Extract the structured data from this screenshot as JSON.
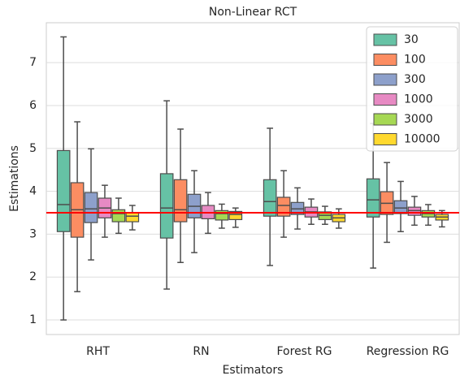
{
  "chart_data": {
    "type": "boxplot",
    "title": "Non-Linear RCT",
    "x_label": "Estimators",
    "y_label": "Estimations",
    "categories": [
      "RHT",
      "RN",
      "Forest RG",
      "Regression RG"
    ],
    "ylim": [
      0.66,
      7.93
    ],
    "yticks": [
      1,
      2,
      3,
      4,
      5,
      6,
      7
    ],
    "grid": true,
    "legend": "upper right",
    "reference_line": {
      "value": 3.5,
      "color": "#ff0000"
    },
    "series": [
      {
        "name": "30",
        "color": "#66c2a5",
        "values": [
          [
            1.0,
            3.06,
            3.69,
            4.95,
            7.6
          ],
          [
            1.72,
            2.91,
            3.61,
            4.41,
            6.11
          ],
          [
            2.27,
            3.42,
            3.76,
            4.27,
            5.47
          ],
          [
            2.21,
            3.4,
            3.8,
            4.29,
            5.58
          ]
        ]
      },
      {
        "name": "100",
        "color": "#fc8d62",
        "values": [
          [
            1.66,
            2.93,
            3.57,
            4.2,
            5.62
          ],
          [
            2.34,
            3.29,
            3.57,
            4.27,
            5.45
          ],
          [
            2.93,
            3.42,
            3.67,
            3.86,
            4.48
          ],
          [
            2.81,
            3.46,
            3.72,
            3.99,
            4.67
          ]
        ]
      },
      {
        "name": "300",
        "color": "#8da0cb",
        "values": [
          [
            2.4,
            3.27,
            3.59,
            3.97,
            4.99
          ],
          [
            2.57,
            3.38,
            3.65,
            3.93,
            4.48
          ],
          [
            3.12,
            3.46,
            3.59,
            3.74,
            4.08
          ],
          [
            3.06,
            3.48,
            3.61,
            3.78,
            4.23
          ]
        ]
      },
      {
        "name": "1000",
        "color": "#e78ac3",
        "values": [
          [
            2.93,
            3.38,
            3.61,
            3.84,
            4.14
          ],
          [
            3.02,
            3.36,
            3.5,
            3.67,
            3.97
          ],
          [
            3.23,
            3.4,
            3.52,
            3.63,
            3.82
          ],
          [
            3.21,
            3.44,
            3.55,
            3.63,
            3.88
          ]
        ]
      },
      {
        "name": "3000",
        "color": "#a6d854",
        "values": [
          [
            3.02,
            3.29,
            3.48,
            3.57,
            3.84
          ],
          [
            3.14,
            3.33,
            3.48,
            3.55,
            3.7
          ],
          [
            3.23,
            3.34,
            3.44,
            3.52,
            3.65
          ],
          [
            3.21,
            3.4,
            3.48,
            3.55,
            3.69
          ]
        ]
      },
      {
        "name": "10000",
        "color": "#ffd92f",
        "values": [
          [
            3.1,
            3.29,
            3.42,
            3.5,
            3.67
          ],
          [
            3.16,
            3.34,
            3.46,
            3.53,
            3.61
          ],
          [
            3.14,
            3.29,
            3.38,
            3.46,
            3.59
          ],
          [
            3.17,
            3.33,
            3.4,
            3.46,
            3.55
          ]
        ]
      }
    ]
  }
}
